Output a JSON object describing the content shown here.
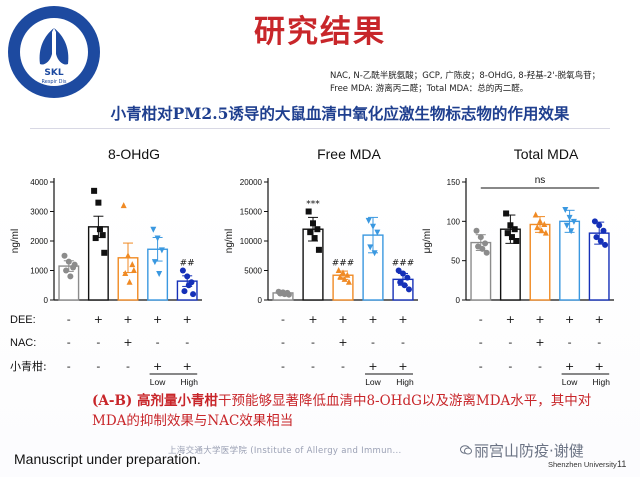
{
  "slide": {
    "title": "研究结果",
    "abbreviations": [
      "NAC, N-乙酰半胱氨酸；GCP, 广陈皮；8-OHdG, 8-羟基-2'-脱氧鸟苷；",
      "Free MDA: 游离丙二醛；Total MDA：总的丙二醛。"
    ],
    "subtitle": "小青柑对PM2.5诱导的大鼠血清中氧化应激生物标志物的作用效果",
    "conclusion_prefix": "(A-B) 高剂量小青柑",
    "conclusion_rest": "干预能够显著降低血清中8-OHdG以及游离MDA水平，其中对MDA的抑制效果与NAC效果相当",
    "manuscript_note": "Manuscript under preparation.",
    "watermark": "上海交通大学医学院 (Institute of Allergy and Immun...",
    "wechat_label": "丽宫山防疫·谢健",
    "university": "Shenzhen University",
    "page_number": "11",
    "logo": {
      "text": "SKL",
      "subtext": "Respir Dis"
    },
    "colors": {
      "title": "#c8262a",
      "subtitle": "#1f3f8f",
      "conclusion": "#c8262a"
    }
  },
  "treatment_table": {
    "row_labels": [
      "DEE:",
      "NAC:",
      "小青柑:"
    ],
    "panels": [
      {
        "dee": [
          "-",
          "+",
          "+",
          "+",
          "+"
        ],
        "nac": [
          "-",
          "-",
          "+",
          "-",
          "-"
        ],
        "xqg": [
          "-",
          "-",
          "-",
          "+",
          "+"
        ],
        "dose": [
          "Low",
          "High"
        ]
      },
      {
        "dee": [
          "-",
          "+",
          "+",
          "+",
          "+"
        ],
        "nac": [
          "-",
          "-",
          "+",
          "-",
          "-"
        ],
        "xqg": [
          "-",
          "-",
          "-",
          "+",
          "+"
        ],
        "dose": [
          "Low",
          "High"
        ]
      },
      {
        "dee": [
          "-",
          "+",
          "+",
          "+",
          "+"
        ],
        "nac": [
          "-",
          "-",
          "+",
          "-",
          "-"
        ],
        "xqg": [
          "-",
          "-",
          "-",
          "+",
          "+"
        ],
        "dose": [
          "Low",
          "High"
        ]
      }
    ]
  },
  "chart_data": [
    {
      "type": "bar",
      "title": "8-OHdG",
      "ylabel": "ng/ml",
      "ylim": [
        0,
        4000
      ],
      "yticks": [
        0,
        1000,
        2000,
        3000,
        4000
      ],
      "colors": [
        "#8c8c8c",
        "#111111",
        "#f08a24",
        "#3a98e0",
        "#1530b8"
      ],
      "markers": [
        "circle",
        "square",
        "triangle",
        "triangle-down",
        "circle"
      ],
      "values": [
        1150,
        2480,
        1430,
        1720,
        640
      ],
      "errors": [
        180,
        360,
        500,
        400,
        180
      ],
      "points": [
        [
          1500,
          1300,
          1100,
          1000,
          800,
          1200
        ],
        [
          3700,
          3300,
          2200,
          2100,
          2400,
          1600
        ],
        [
          3200,
          1500,
          1200,
          900,
          600,
          1000
        ],
        [
          2400,
          2100,
          1700,
          1300,
          900
        ],
        [
          1000,
          800,
          600,
          300,
          500,
          200
        ]
      ],
      "annotations": [
        "",
        "",
        "",
        "",
        "##"
      ]
    },
    {
      "type": "bar",
      "title": "Free MDA",
      "ylabel": "ng/ml",
      "ylim": [
        0,
        20000
      ],
      "yticks": [
        0,
        5000,
        10000,
        15000,
        20000
      ],
      "colors": [
        "#8c8c8c",
        "#111111",
        "#f08a24",
        "#3a98e0",
        "#1530b8"
      ],
      "markers": [
        "circle",
        "square",
        "triangle",
        "triangle-down",
        "circle"
      ],
      "values": [
        1200,
        12000,
        4200,
        11000,
        3500
      ],
      "errors": [
        200,
        2000,
        700,
        3000,
        1000
      ],
      "points": [
        [
          1400,
          1300,
          1200,
          1100,
          1000,
          900
        ],
        [
          15000,
          13000,
          12000,
          11500,
          10500,
          8500
        ],
        [
          5000,
          4600,
          4200,
          3900,
          3500,
          3000
        ],
        [
          13500,
          12500,
          11500,
          9000,
          8000
        ],
        [
          5000,
          4500,
          3800,
          3000,
          2500,
          1800
        ]
      ],
      "annotations": [
        "",
        "***",
        "###",
        "",
        "###"
      ]
    },
    {
      "type": "bar",
      "title": "Total MDA",
      "ylabel": "μg/ml",
      "ylim": [
        0,
        150
      ],
      "yticks": [
        0,
        50,
        100,
        150
      ],
      "colors": [
        "#8c8c8c",
        "#111111",
        "#f08a24",
        "#3a98e0",
        "#1530b8"
      ],
      "markers": [
        "circle",
        "square",
        "triangle",
        "triangle-down",
        "circle"
      ],
      "values": [
        73,
        90,
        96,
        100,
        85
      ],
      "errors": [
        10,
        18,
        10,
        14,
        14
      ],
      "points": [
        [
          88,
          80,
          72,
          68,
          65,
          60
        ],
        [
          110,
          95,
          90,
          85,
          80,
          75
        ],
        [
          108,
          100,
          96,
          92,
          88,
          85
        ],
        [
          115,
          105,
          100,
          95,
          88
        ],
        [
          100,
          95,
          88,
          80,
          75,
          70
        ]
      ],
      "annotations": [
        "",
        "",
        "",
        "",
        ""
      ],
      "comparison": "ns"
    }
  ]
}
